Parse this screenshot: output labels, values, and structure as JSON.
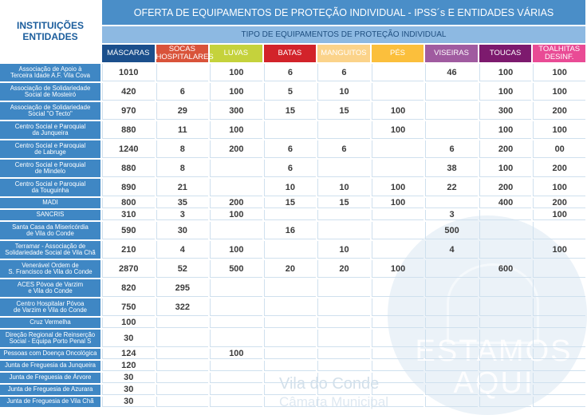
{
  "header": {
    "title": "OFERTA DE EQUIPAMENTOS DE PROTEÇÃO INDIVIDUAL - IPSS´s E ENTIDADES VÁRIAS",
    "subtitle": "TIPO DE EQUIPAMENTOS DE PROTEÇÃO INDIVIDUAL",
    "institutions_label_line1": "INSTITUIÇÕES",
    "institutions_label_line2": "ENTIDADES"
  },
  "columns": [
    {
      "label1": "MÁSCARAS",
      "label2": "",
      "color": "#1b4f8c",
      "text": "#ffffff"
    },
    {
      "label1": "SOCAS",
      "label2": "HOSPITALARES",
      "color": "#d9533a",
      "text": "#ffffff"
    },
    {
      "label1": "LUVAS",
      "label2": "",
      "color": "#c5d23c",
      "text": "#ffffff"
    },
    {
      "label1": "BATAS",
      "label2": "",
      "color": "#d2232a",
      "text": "#ffffff"
    },
    {
      "label1": "MANGUITOS",
      "label2": "",
      "color": "#fbd38a",
      "text": "#ffffff"
    },
    {
      "label1": "PÉS",
      "label2": "",
      "color": "#fbbf3c",
      "text": "#ffffff"
    },
    {
      "label1": "VISEIRAS",
      "label2": "",
      "color": "#a05ba0",
      "text": "#ffffff"
    },
    {
      "label1": "TOUCAS",
      "label2": "",
      "color": "#7d1a6e",
      "text": "#ffffff"
    },
    {
      "label1": "TOALHITAS",
      "label2": "DESINF.",
      "color": "#e94b95",
      "text": "#ffffff"
    }
  ],
  "rows": [
    {
      "name1": "Associação de Apoio à",
      "name2": "Terceira Idade A.F. Vila Cova",
      "tall": true,
      "values": [
        "1010",
        "",
        "100",
        "6",
        "6",
        "",
        "46",
        "100",
        "100"
      ]
    },
    {
      "name1": "Associação de Solidariedade",
      "name2": "Social de Mosteiró",
      "tall": true,
      "values": [
        "420",
        "6",
        "100",
        "5",
        "10",
        "",
        "",
        "100",
        "100"
      ]
    },
    {
      "name1": "Associação de Solidariedade",
      "name2": "Social \"O Tecto\"",
      "tall": true,
      "values": [
        "970",
        "29",
        "300",
        "15",
        "15",
        "100",
        "",
        "300",
        "200"
      ]
    },
    {
      "name1": "Centro Social e Paroquial",
      "name2": "da Junqueira",
      "tall": true,
      "values": [
        "880",
        "11",
        "100",
        "",
        "",
        "100",
        "",
        "100",
        "100"
      ]
    },
    {
      "name1": "Centro Social e Paroquial",
      "name2": "de Labruge",
      "tall": true,
      "values": [
        "1240",
        "8",
        "200",
        "6",
        "6",
        "",
        "6",
        "200",
        "00"
      ]
    },
    {
      "name1": "Centro Social e Paroquial",
      "name2": "de Mindelo",
      "tall": true,
      "values": [
        "880",
        "8",
        "",
        "6",
        "",
        "",
        "38",
        "100",
        "200"
      ]
    },
    {
      "name1": "Centro Social e Paroquial",
      "name2": "da Touguinha",
      "tall": true,
      "values": [
        "890",
        "21",
        "",
        "10",
        "10",
        "100",
        "22",
        "200",
        "100"
      ]
    },
    {
      "name1": "MADI",
      "name2": "",
      "tall": false,
      "values": [
        "800",
        "35",
        "200",
        "15",
        "15",
        "100",
        "",
        "400",
        "200"
      ]
    },
    {
      "name1": "SANCRIS",
      "name2": "",
      "tall": false,
      "values": [
        "310",
        "3",
        "100",
        "",
        "",
        "",
        "3",
        "",
        "100"
      ]
    },
    {
      "name1": "Santa Casa da Misericórdia",
      "name2": "de Vila do Conde",
      "tall": true,
      "values": [
        "590",
        "30",
        "",
        "16",
        "",
        "",
        "500",
        "",
        ""
      ]
    },
    {
      "name1": "Terramar - Associação de",
      "name2": "Solidariedade Social de Vila Chã",
      "tall": true,
      "values": [
        "210",
        "4",
        "100",
        "",
        "10",
        "",
        "4",
        "",
        "100"
      ]
    },
    {
      "name1": "Venerável Ordem de",
      "name2": "S. Francisco de Vila do Conde",
      "tall": true,
      "values": [
        "2870",
        "52",
        "500",
        "20",
        "20",
        "100",
        "",
        "600",
        ""
      ]
    },
    {
      "name1": "ACES Póvoa de Varzim",
      "name2": "e Vila do Conde",
      "tall": true,
      "values": [
        "820",
        "295",
        "",
        "",
        "",
        "",
        "",
        "",
        ""
      ]
    },
    {
      "name1": "Centro Hospitalar Póvoa",
      "name2": "de Varzim e Vila do Conde",
      "tall": true,
      "values": [
        "750",
        "322",
        "",
        "",
        "",
        "",
        "",
        "",
        ""
      ]
    },
    {
      "name1": "Cruz Vermelha",
      "name2": "",
      "tall": false,
      "values": [
        "100",
        "",
        "",
        "",
        "",
        "",
        "",
        "",
        ""
      ]
    },
    {
      "name1": "Direção Regional de Reinserção",
      "name2": "Social - Equipa Porto Penal S",
      "tall": true,
      "values": [
        "30",
        "",
        "",
        "",
        "",
        "",
        "",
        "",
        ""
      ]
    },
    {
      "name1": "Pessoas com Doença Oncológica",
      "name2": "",
      "tall": false,
      "values": [
        "124",
        "",
        "100",
        "",
        "",
        "",
        "",
        "",
        ""
      ]
    },
    {
      "name1": "Junta de Freguesia da Junqueira",
      "name2": "",
      "tall": false,
      "values": [
        "120",
        "",
        "",
        "",
        "",
        "",
        "",
        "",
        ""
      ]
    },
    {
      "name1": "Junta de Freguesia de Árvore",
      "name2": "",
      "tall": false,
      "values": [
        "30",
        "",
        "",
        "",
        "",
        "",
        "",
        "",
        ""
      ]
    },
    {
      "name1": "Junta de Freguesia de Azurara",
      "name2": "",
      "tall": false,
      "values": [
        "30",
        "",
        "",
        "",
        "",
        "",
        "",
        "",
        ""
      ]
    },
    {
      "name1": "Junta de Freguesia de Vila Chã",
      "name2": "",
      "tall": false,
      "values": [
        "30",
        "",
        "",
        "",
        "",
        "",
        "",
        "",
        ""
      ]
    }
  ],
  "watermark": {
    "line1": "ESTAMOS",
    "line2": "AQUI",
    "town": "Vila do Conde",
    "council": "Câmara Municipal"
  }
}
